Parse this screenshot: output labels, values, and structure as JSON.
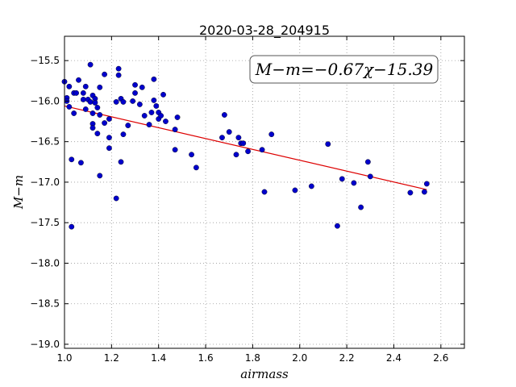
{
  "chart_data": {
    "type": "scatter",
    "title": "2020-03-28_204915",
    "xlabel": "airmass",
    "ylabel": "M−m",
    "xlim": [
      1.0,
      2.7
    ],
    "ylim": [
      -19.05,
      -15.2
    ],
    "xticks": [
      1.0,
      1.2,
      1.4,
      1.6,
      1.8,
      2.0,
      2.2,
      2.4,
      2.6
    ],
    "xtick_labels": [
      "1.0",
      "1.2",
      "1.4",
      "1.6",
      "1.8",
      "2.0",
      "2.2",
      "2.4",
      "2.6"
    ],
    "yticks": [
      -15.5,
      -16.0,
      -16.5,
      -17.0,
      -17.5,
      -18.0,
      -18.5,
      -19.0
    ],
    "ytick_labels": [
      "−15.5",
      "−16.0",
      "−16.5",
      "−17.0",
      "−17.5",
      "−18.0",
      "−18.5",
      "−19.0"
    ],
    "grid": true,
    "annotation": "M−m=−0.67χ−15.39",
    "marker_color": "#0000cc",
    "fit_color": "#dd0000",
    "fit_line": {
      "slope": -0.67,
      "intercept": -15.39,
      "x": [
        1.0,
        2.54
      ]
    },
    "series": [
      {
        "points": [
          [
            1.0,
            -15.76
          ],
          [
            1.01,
            -15.96
          ],
          [
            1.01,
            -16.0
          ],
          [
            1.02,
            -15.82
          ],
          [
            1.02,
            -16.07
          ],
          [
            1.03,
            -16.72
          ],
          [
            1.03,
            -17.55
          ],
          [
            1.04,
            -16.15
          ],
          [
            1.04,
            -15.9
          ],
          [
            1.05,
            -15.9
          ],
          [
            1.06,
            -15.74
          ],
          [
            1.07,
            -16.76
          ],
          [
            1.08,
            -15.98
          ],
          [
            1.08,
            -15.9
          ],
          [
            1.09,
            -15.82
          ],
          [
            1.09,
            -16.1
          ],
          [
            1.1,
            -15.98
          ],
          [
            1.11,
            -16.01
          ],
          [
            1.11,
            -15.55
          ],
          [
            1.12,
            -15.93
          ],
          [
            1.12,
            -16.15
          ],
          [
            1.12,
            -16.28
          ],
          [
            1.12,
            -16.33
          ],
          [
            1.13,
            -15.97
          ],
          [
            1.13,
            -16.02
          ],
          [
            1.14,
            -16.08
          ],
          [
            1.14,
            -16.4
          ],
          [
            1.15,
            -16.17
          ],
          [
            1.15,
            -16.92
          ],
          [
            1.15,
            -15.83
          ],
          [
            1.17,
            -15.67
          ],
          [
            1.17,
            -16.27
          ],
          [
            1.19,
            -16.22
          ],
          [
            1.19,
            -16.45
          ],
          [
            1.19,
            -16.58
          ],
          [
            1.22,
            -16.01
          ],
          [
            1.22,
            -17.2
          ],
          [
            1.23,
            -15.68
          ],
          [
            1.23,
            -15.6
          ],
          [
            1.24,
            -16.75
          ],
          [
            1.24,
            -15.97
          ],
          [
            1.25,
            -16.01
          ],
          [
            1.25,
            -16.41
          ],
          [
            1.27,
            -16.3
          ],
          [
            1.29,
            -16.0
          ],
          [
            1.3,
            -15.9
          ],
          [
            1.3,
            -15.8
          ],
          [
            1.32,
            -16.04
          ],
          [
            1.33,
            -15.83
          ],
          [
            1.34,
            -16.18
          ],
          [
            1.36,
            -16.29
          ],
          [
            1.37,
            -16.14
          ],
          [
            1.38,
            -15.99
          ],
          [
            1.38,
            -15.73
          ],
          [
            1.39,
            -16.06
          ],
          [
            1.4,
            -16.14
          ],
          [
            1.4,
            -16.22
          ],
          [
            1.41,
            -16.18
          ],
          [
            1.42,
            -15.92
          ],
          [
            1.43,
            -16.25
          ],
          [
            1.47,
            -16.35
          ],
          [
            1.47,
            -16.6
          ],
          [
            1.48,
            -16.2
          ],
          [
            1.54,
            -16.66
          ],
          [
            1.56,
            -16.82
          ],
          [
            1.67,
            -16.45
          ],
          [
            1.68,
            -16.17
          ],
          [
            1.7,
            -16.38
          ],
          [
            1.73,
            -16.66
          ],
          [
            1.74,
            -16.45
          ],
          [
            1.75,
            -16.52
          ],
          [
            1.76,
            -16.52
          ],
          [
            1.78,
            -16.62
          ],
          [
            1.84,
            -16.6
          ],
          [
            1.85,
            -17.12
          ],
          [
            1.88,
            -16.41
          ],
          [
            1.98,
            -17.1
          ],
          [
            2.05,
            -17.05
          ],
          [
            2.12,
            -16.53
          ],
          [
            2.16,
            -17.54
          ],
          [
            2.18,
            -16.96
          ],
          [
            2.23,
            -17.01
          ],
          [
            2.26,
            -17.31
          ],
          [
            2.29,
            -16.75
          ],
          [
            2.3,
            -16.93
          ],
          [
            2.47,
            -17.13
          ],
          [
            2.53,
            -17.12
          ],
          [
            2.54,
            -17.02
          ]
        ]
      }
    ]
  }
}
